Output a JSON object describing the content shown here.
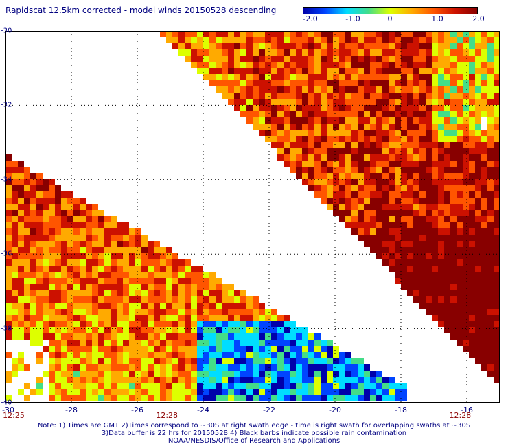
{
  "title": "Rapidscat 12.5km corrected - model winds 20150528 descending",
  "colorbar": {
    "labels": [
      "-2.0",
      "-1.0",
      "0",
      "1.0",
      "2.0"
    ],
    "values": [
      -2.0,
      -1.0,
      0,
      1.0,
      2.0
    ],
    "colors": [
      "#0000aa",
      "#0044ff",
      "#00ddff",
      "#44dd88",
      "#ddff00",
      "#ffaa00",
      "#ff5500",
      "#cc1100",
      "#880000"
    ]
  },
  "map": {
    "lon_range": [
      -30,
      -15
    ],
    "lat_range": [
      -40,
      -30
    ],
    "lon_ticks": [
      "-30",
      "-28",
      "-26",
      "-24",
      "-22",
      "-20",
      "-18",
      "-16"
    ],
    "lat_ticks": [
      "-30",
      "-32",
      "-34",
      "-36",
      "-38",
      "-40"
    ],
    "grid": "dotted",
    "times": [
      {
        "label": "12:25",
        "lon": -30
      },
      {
        "label": "12:28",
        "lon": -25.1
      },
      {
        "label": "12:28",
        "lon": -16.2
      }
    ],
    "swaths": [
      {
        "name": "right swath",
        "description_cells": "diagonal band from (-25,-30) to (-15,-40)"
      },
      {
        "name": "left swath",
        "description_cells": "diagonal band from (-30,-33.5) to (-18.2,-40)"
      }
    ]
  },
  "notes": [
    "Note: 1) Times are GMT 2)Times correspond to ~30S at right swath edge - time is right swath for overlapping swaths at ~30S",
    "3)Data buffer is 22 hrs for 20150528 4) Black barbs indicate possible rain contamination",
    "NOAA/NESDIS/Office of Research and Applications"
  ]
}
